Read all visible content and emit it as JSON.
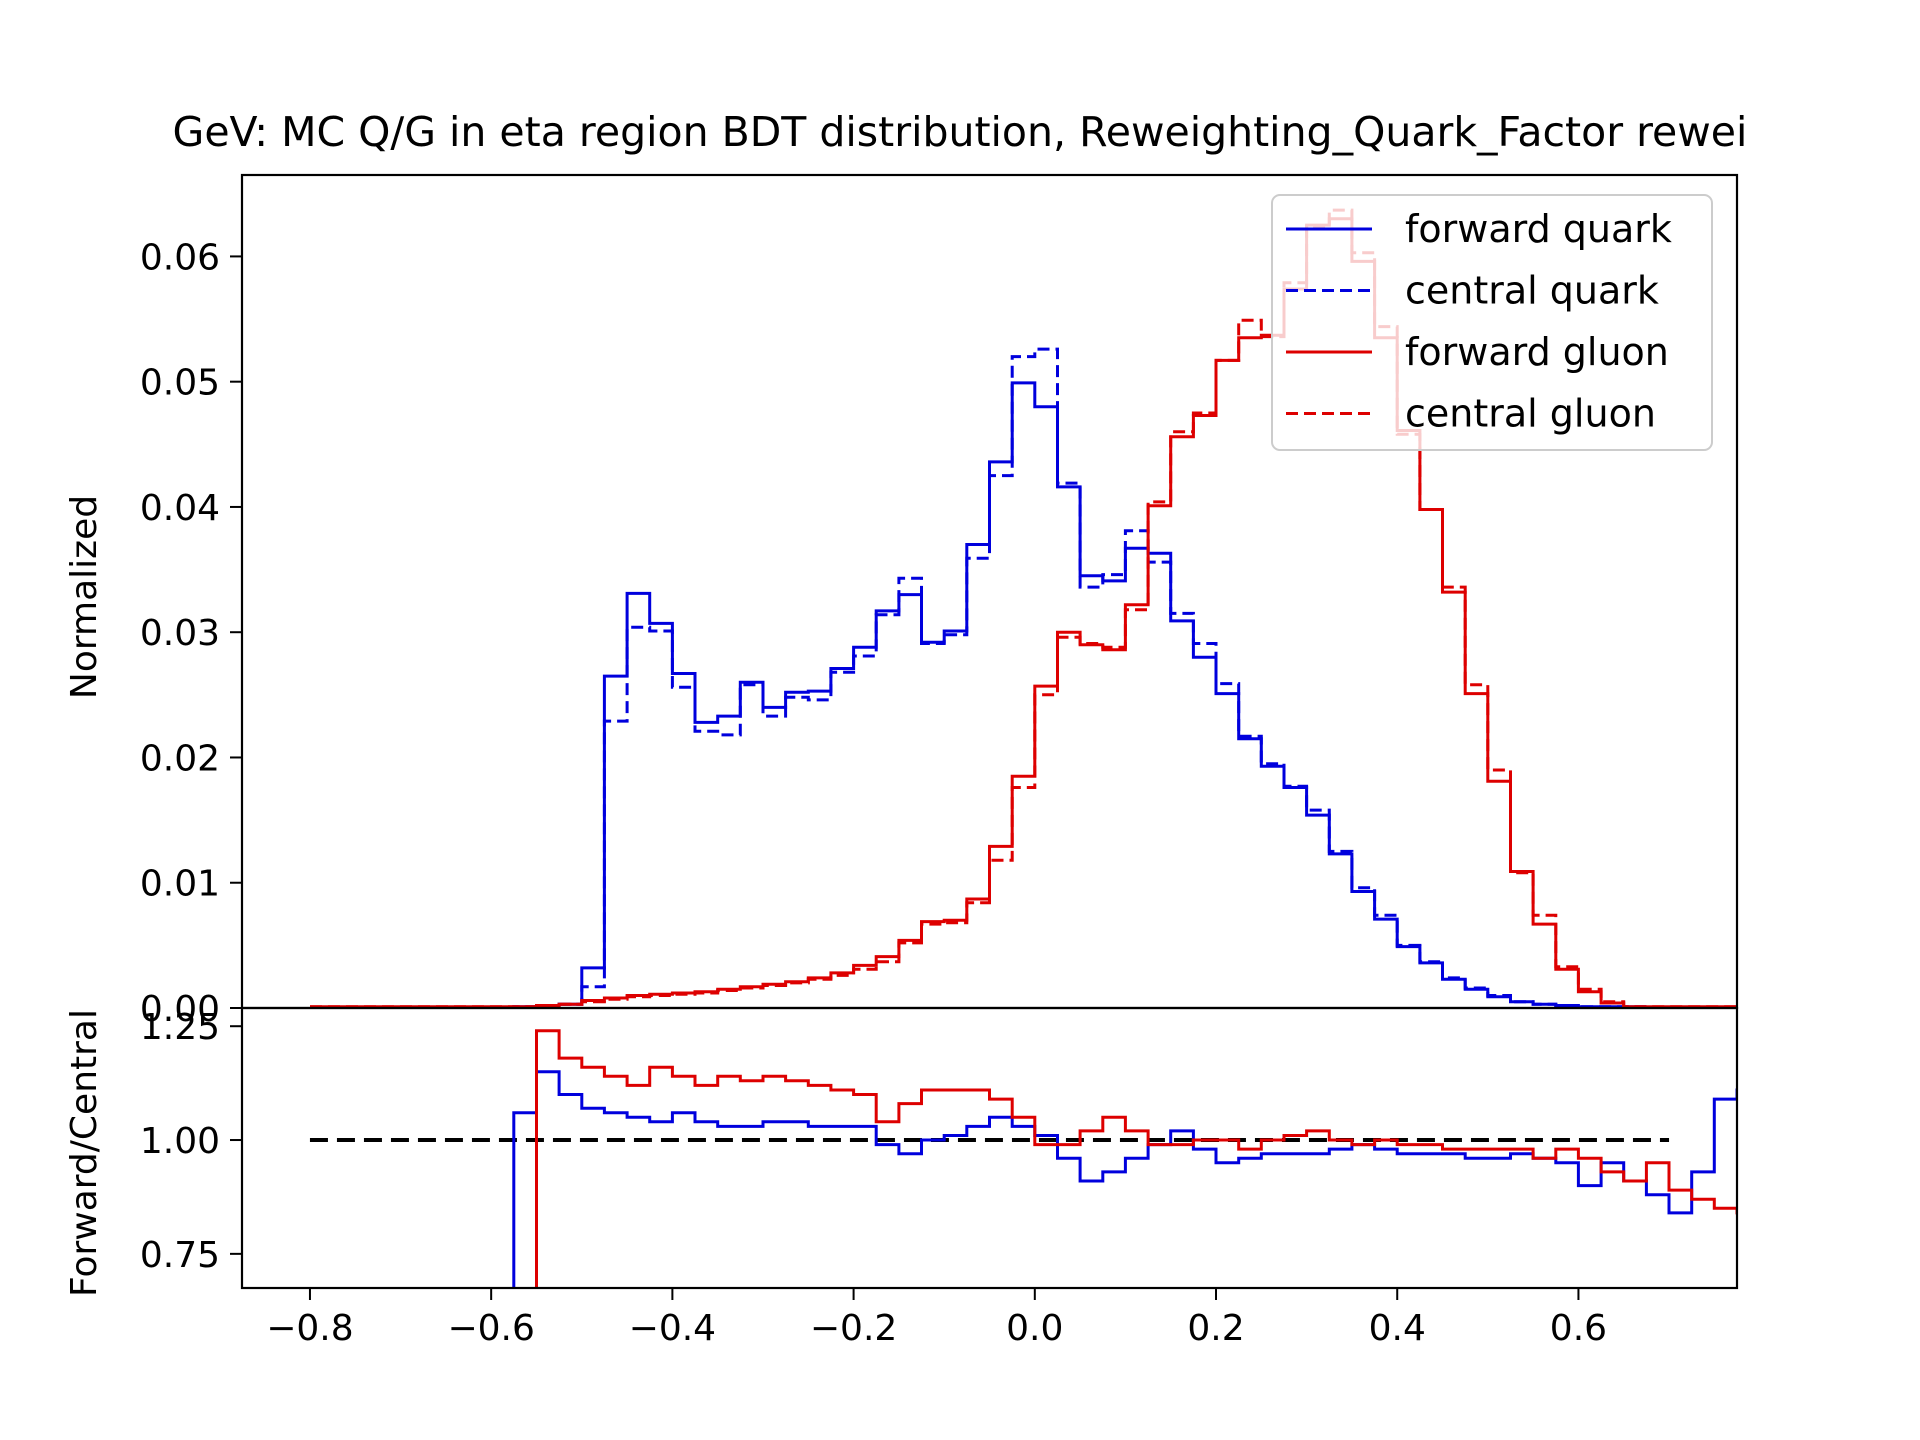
{
  "chart_data": {
    "type": "step-histogram",
    "title": "GeV: MC Q/G in eta region BDT distribution, Reweighting_Quark_Factor rewei",
    "top_panel": {
      "ylabel": "Normalized",
      "ylim": [
        0,
        0.0665
      ],
      "yticks": [
        "0.00",
        "0.01",
        "0.02",
        "0.03",
        "0.04",
        "0.05",
        "0.06"
      ],
      "ytick_values": [
        0,
        0.01,
        0.02,
        0.03,
        0.04,
        0.05,
        0.06
      ]
    },
    "bottom_panel": {
      "ylabel": "Forward/Central",
      "ylim": [
        0.675,
        1.29
      ],
      "yticks": [
        "0.75",
        "1.00",
        "1.25"
      ],
      "ytick_values": [
        0.75,
        1.0,
        1.25
      ],
      "reference_line": 1.0
    },
    "xlim": [
      -0.875,
      0.775
    ],
    "xticks": [
      "−0.8",
      "−0.6",
      "−0.4",
      "−0.2",
      "0.0",
      "0.2",
      "0.4",
      "0.6"
    ],
    "xtick_values": [
      -0.8,
      -0.6,
      -0.4,
      -0.2,
      0.0,
      0.2,
      0.4,
      0.6
    ],
    "bin_start": -0.8,
    "bin_width": 0.025,
    "legend": {
      "position": "top-right",
      "entries": [
        {
          "label": "forward quark",
          "color": "#0000dd",
          "style": "solid"
        },
        {
          "label": "central quark",
          "color": "#0000dd",
          "style": "dashed"
        },
        {
          "label": "forward gluon",
          "color": "#dd0000",
          "style": "solid"
        },
        {
          "label": "central gluon",
          "color": "#dd0000",
          "style": "dashed"
        }
      ]
    },
    "series": [
      {
        "name": "forward quark",
        "color": "#0000dd",
        "style": "solid",
        "values": [
          0,
          0,
          0,
          0,
          0,
          0,
          0,
          0,
          0,
          0.0001,
          0.0002,
          0.0003,
          0.0032,
          0.0265,
          0.0331,
          0.0307,
          0.0267,
          0.0228,
          0.0233,
          0.026,
          0.024,
          0.0252,
          0.0253,
          0.0271,
          0.0288,
          0.0317,
          0.033,
          0.0292,
          0.0301,
          0.037,
          0.0436,
          0.0499,
          0.048,
          0.0416,
          0.0345,
          0.0341,
          0.0367,
          0.0363,
          0.0309,
          0.028,
          0.0251,
          0.0215,
          0.0193,
          0.0176,
          0.0154,
          0.0123,
          0.0093,
          0.0071,
          0.0049,
          0.0036,
          0.0023,
          0.0015,
          0.0009,
          0.0005,
          0.0003,
          0.0002,
          0.0001,
          0.0001,
          0.0001
        ]
      },
      {
        "name": "central quark",
        "color": "#0000dd",
        "style": "dashed",
        "values": [
          0,
          0,
          0,
          0,
          0,
          0,
          0,
          0,
          0,
          0.0001,
          0.0002,
          0.0003,
          0.0017,
          0.0229,
          0.0304,
          0.0301,
          0.0256,
          0.0221,
          0.0218,
          0.0258,
          0.0233,
          0.0248,
          0.0246,
          0.0268,
          0.0281,
          0.0314,
          0.0343,
          0.0291,
          0.0298,
          0.0359,
          0.0425,
          0.052,
          0.0526,
          0.0419,
          0.0336,
          0.0346,
          0.0381,
          0.0356,
          0.0315,
          0.0291,
          0.0259,
          0.0217,
          0.0195,
          0.0177,
          0.0158,
          0.0125,
          0.0096,
          0.0074,
          0.005,
          0.0037,
          0.0024,
          0.0016,
          0.001,
          0.0005,
          0.0003,
          0.0002,
          0.0001,
          0.0001,
          0.0001
        ]
      },
      {
        "name": "forward gluon",
        "color": "#dd0000",
        "style": "solid",
        "values": [
          0.0001,
          0.0001,
          0.0001,
          0.0001,
          0.0001,
          0.0001,
          0.0001,
          0.0001,
          0.0001,
          0.0001,
          0.0002,
          0.0003,
          0.0006,
          0.0008,
          0.001,
          0.0011,
          0.0012,
          0.0013,
          0.0015,
          0.0017,
          0.0019,
          0.0021,
          0.0024,
          0.0028,
          0.0034,
          0.0041,
          0.0054,
          0.0069,
          0.007,
          0.0087,
          0.0129,
          0.0185,
          0.0257,
          0.03,
          0.029,
          0.0286,
          0.0322,
          0.0401,
          0.0456,
          0.0473,
          0.0517,
          0.0535,
          0.0537,
          0.0574,
          0.0625,
          0.063,
          0.0596,
          0.0535,
          0.0461,
          0.0398,
          0.0332,
          0.0251,
          0.0181,
          0.0109,
          0.0067,
          0.0031,
          0.0013,
          0.0004,
          0.0001,
          0.0001,
          0.0001,
          0.0001,
          0.0001,
          0.0001,
          0.0001,
          0.0001,
          0.0001,
          0.0001,
          0.0001,
          0.0001,
          0.0001,
          0.0001,
          0.0001,
          0.0001,
          0.0001,
          0.0001,
          0.0001,
          0.0001,
          0.0001,
          0.0001,
          0.0001,
          0.0001,
          0.0001,
          0.0001,
          0.0001,
          0.0001,
          0.0001,
          0.0001,
          0.0001,
          0.0001,
          0.0001,
          0.0001,
          0.0001,
          0.0001,
          0.0001,
          0.0001,
          0.0001,
          0.0001,
          0.0001,
          0.0001,
          0.0001,
          0.0001,
          0.0001,
          0.0001,
          0.0001,
          0.0001,
          0.0001,
          0.0001,
          0.0001,
          0.0001,
          0.0001,
          0.0001,
          0.0001,
          0.0001,
          0.0001,
          0.0001,
          0.0001,
          0.0001,
          0.0001,
          0.0001,
          0.0001,
          0.0001,
          0.0001,
          0.0001,
          0.0001,
          0.0001,
          0.0001,
          0.0001,
          0.0001,
          0.0001,
          0.0001,
          0.0001,
          0.0001,
          0.0001,
          0.0001,
          0.0001,
          0.0001,
          0.0001,
          0.0001,
          0.0001,
          0.0001,
          0.0001,
          0.0001,
          0.0001,
          0.0001,
          0.0001,
          0.0001,
          0.0001,
          0.0001,
          0.0001,
          0.0001,
          0.0001,
          0.0001,
          0.0001,
          0.0001,
          0.0001
        ]
      },
      {
        "name": "central gluon",
        "color": "#dd0000",
        "style": "dashed",
        "values": [
          0.0001,
          0.0001,
          0.0001,
          0.0001,
          0.0001,
          0.0001,
          0.0001,
          0.0001,
          0.0001,
          0.0001,
          0.0002,
          0.0003,
          0.0005,
          0.0007,
          0.0009,
          0.001,
          0.0011,
          0.0012,
          0.0014,
          0.0016,
          0.0018,
          0.002,
          0.0023,
          0.0026,
          0.0031,
          0.0037,
          0.0052,
          0.0067,
          0.0068,
          0.0084,
          0.0118,
          0.0176,
          0.025,
          0.0296,
          0.0291,
          0.0288,
          0.0318,
          0.0404,
          0.046,
          0.0475,
          0.0517,
          0.0549,
          0.0536,
          0.0579,
          0.0624,
          0.0637,
          0.0603,
          0.0544,
          0.0458,
          0.0398,
          0.0336,
          0.0258,
          0.019,
          0.0108,
          0.0074,
          0.0033,
          0.0015,
          0.0005,
          0.0001,
          0.0001,
          0.0001,
          0.0001,
          0.0001,
          0.0001,
          0.0001,
          0.0001,
          0.0001,
          0.0001,
          0.0001,
          0.0001,
          0.0001,
          0.0001,
          0.0001,
          0.0001,
          0.0001,
          0.0001,
          0.0001,
          0.0001,
          0.0001,
          0.0001,
          0.0001,
          0.0001,
          0.0001,
          0.0001,
          0.0001,
          0.0001,
          0.0001,
          0.0001,
          0.0001,
          0.0001,
          0.0001,
          0.0001,
          0.0001,
          0.0001,
          0.0001,
          0.0001,
          0.0001,
          0.0001,
          0.0001,
          0.0001,
          0.0001,
          0.0001,
          0.0001,
          0.0001,
          0.0001,
          0.0001,
          0.0001,
          0.0001,
          0.0001,
          0.0001,
          0.0001,
          0.0001,
          0.0001,
          0.0001,
          0.0001,
          0.0001,
          0.0001,
          0.0001,
          0.0001,
          0.0001,
          0.0001,
          0.0001,
          0.0001,
          0.0001,
          0.0001,
          0.0001,
          0.0001,
          0.0001,
          0.0001,
          0.0001,
          0.0001,
          0.0001,
          0.0001,
          0.0001,
          0.0001,
          0.0001,
          0.0001,
          0.0001,
          0.0001,
          0.0001,
          0.0001,
          0.0001,
          0.0001,
          0.0001,
          0.0001,
          0.0001,
          0.0001,
          0.0001,
          0.0001,
          0.0001,
          0.0001,
          0.0001,
          0.0001,
          0.0001,
          0.0001,
          0.0001,
          0.0001
        ]
      }
    ],
    "ratio_series": [
      {
        "name": "quark ratio",
        "color": "#0000dd",
        "start": -0.625,
        "values": [
          0.6,
          0.6,
          1.06,
          1.15,
          1.1,
          1.07,
          1.06,
          1.05,
          1.04,
          1.06,
          1.04,
          1.03,
          1.03,
          1.04,
          1.04,
          1.03,
          1.03,
          1.03,
          0.99,
          0.97,
          1.0,
          1.01,
          1.03,
          1.05,
          1.03,
          1.01,
          0.96,
          0.91,
          0.93,
          0.96,
          0.99,
          1.02,
          0.98,
          0.95,
          0.96,
          0.97,
          0.97,
          0.97,
          0.98,
          0.99,
          0.98,
          0.97,
          0.97,
          0.97,
          0.96,
          0.96,
          0.97,
          0.96,
          0.95,
          0.9,
          0.95,
          0.91,
          0.88,
          0.84,
          0.93,
          1.09,
          1.11
        ]
      },
      {
        "name": "gluon ratio",
        "color": "#dd0000",
        "start": -0.575,
        "values": [
          0.6,
          1.24,
          1.18,
          1.16,
          1.14,
          1.12,
          1.16,
          1.14,
          1.12,
          1.14,
          1.13,
          1.14,
          1.13,
          1.12,
          1.11,
          1.1,
          1.04,
          1.08,
          1.11,
          1.11,
          1.11,
          1.09,
          1.05,
          0.99,
          0.99,
          1.02,
          1.05,
          1.02,
          0.99,
          0.99,
          1.0,
          1.0,
          0.98,
          1.0,
          1.01,
          1.02,
          1.0,
          0.99,
          1.0,
          0.99,
          0.99,
          0.98,
          0.98,
          0.98,
          0.98,
          0.96,
          0.98,
          0.96,
          0.93,
          0.91,
          0.95,
          0.89,
          0.87,
          0.85,
          0.84,
          0.8,
          0.6
        ]
      }
    ]
  }
}
